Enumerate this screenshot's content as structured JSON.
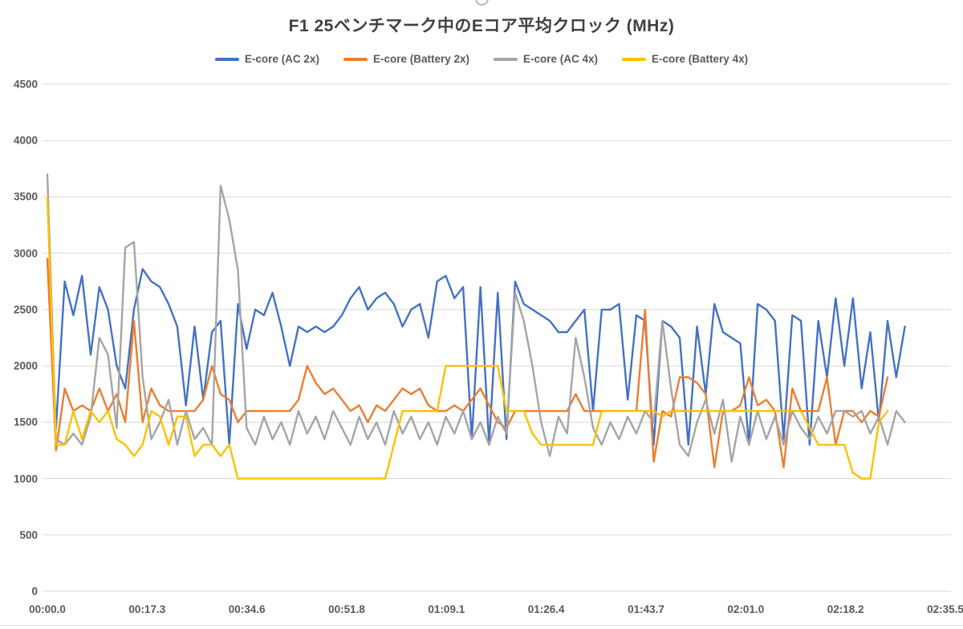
{
  "chart_data": {
    "type": "line",
    "title": "F1 25ベンチマーク中のEコア平均クロック (MHz)",
    "ylabel": "",
    "xlabel": "",
    "ylim": [
      0,
      4500
    ],
    "y_ticks": [
      0,
      500,
      1000,
      1500,
      2000,
      2500,
      3000,
      3500,
      4000,
      4500
    ],
    "x_range_seconds": [
      0,
      155.5
    ],
    "x_tick_labels": [
      "00:00.0",
      "00:17.3",
      "00:34.6",
      "00:51.8",
      "01:09.1",
      "01:26.4",
      "01:43.7",
      "02:01.0",
      "02:18.2",
      "02:35.5"
    ],
    "sample_interval_seconds": 1.5,
    "grid": "horizontal",
    "gridline_color": "#d9d9d9",
    "legend_position": "top",
    "text_color_title": "#404040",
    "text_color_axis": "#595959",
    "series": [
      {
        "name": "E-core (AC 2x)",
        "color": "#4472C4",
        "values": [
          2950,
          1450,
          2750,
          2450,
          2800,
          2100,
          2700,
          2500,
          2000,
          1800,
          2500,
          2860,
          2750,
          2700,
          2550,
          2350,
          1650,
          2350,
          1700,
          2300,
          2400,
          1300,
          2550,
          2150,
          2500,
          2450,
          2650,
          2350,
          2000,
          2350,
          2300,
          2350,
          2300,
          2350,
          2450,
          2600,
          2700,
          2500,
          2600,
          2650,
          2550,
          2350,
          2500,
          2550,
          2250,
          2750,
          2800,
          2600,
          2700,
          1350,
          2700,
          1300,
          2650,
          1350,
          2750,
          2550,
          2500,
          2450,
          2400,
          2300,
          2300,
          2400,
          2500,
          1600,
          2500,
          2500,
          2550,
          1700,
          2450,
          2400,
          1300,
          2400,
          2350,
          2250,
          1300,
          2350,
          1750,
          2550,
          2300,
          2250,
          2200,
          1300,
          2550,
          2500,
          2400,
          1350,
          2450,
          2400,
          1300,
          2400,
          1900,
          2600,
          2000,
          2600,
          1800,
          2300,
          1500,
          2400,
          1900,
          2350,
          null
        ]
      },
      {
        "name": "E-core (Battery 2x)",
        "color": "#ED7D31",
        "values": [
          2950,
          1250,
          1800,
          1600,
          1650,
          1600,
          1800,
          1600,
          1750,
          1500,
          2400,
          1500,
          1800,
          1650,
          1600,
          1600,
          1600,
          1600,
          1700,
          2000,
          1750,
          1700,
          1500,
          1600,
          1600,
          1600,
          1600,
          1600,
          1600,
          1700,
          2000,
          1850,
          1750,
          1800,
          1700,
          1600,
          1650,
          1500,
          1650,
          1600,
          1700,
          1800,
          1750,
          1800,
          1650,
          1600,
          1600,
          1650,
          1600,
          1700,
          1800,
          1650,
          1500,
          1450,
          1600,
          1600,
          1600,
          1600,
          1600,
          1600,
          1600,
          1750,
          1600,
          1600,
          1600,
          1600,
          1600,
          1600,
          1600,
          2500,
          1150,
          1600,
          1550,
          1900,
          1900,
          1850,
          1750,
          1100,
          1600,
          1600,
          1650,
          1900,
          1650,
          1700,
          1600,
          1100,
          1800,
          1600,
          1600,
          1600,
          1900,
          1300,
          1600,
          1600,
          1500,
          1600,
          1550,
          1900,
          null,
          null,
          null
        ]
      },
      {
        "name": "E-core (AC 4x)",
        "color": "#A5A5A5",
        "values": [
          3700,
          1350,
          1300,
          1400,
          1300,
          1550,
          2250,
          2100,
          1450,
          3050,
          3100,
          1900,
          1350,
          1500,
          1700,
          1300,
          1600,
          1350,
          1450,
          1300,
          3600,
          3300,
          2850,
          1450,
          1300,
          1550,
          1350,
          1500,
          1300,
          1600,
          1400,
          1550,
          1350,
          1600,
          1450,
          1300,
          1550,
          1350,
          1500,
          1300,
          1600,
          1400,
          1550,
          1350,
          1500,
          1300,
          1550,
          1400,
          1600,
          1350,
          1500,
          1300,
          1550,
          1400,
          2650,
          2400,
          2000,
          1500,
          1200,
          1550,
          1400,
          2250,
          1900,
          1450,
          1300,
          1500,
          1350,
          1550,
          1400,
          1600,
          1500,
          2400,
          1800,
          1300,
          1200,
          1500,
          1700,
          1400,
          1700,
          1150,
          1550,
          1300,
          1600,
          1350,
          1550,
          1300,
          1600,
          1450,
          1350,
          1550,
          1400,
          1600,
          1600,
          1550,
          1600,
          1400,
          1550,
          1300,
          1600,
          1500,
          null
        ]
      },
      {
        "name": "E-core (Battery 4x)",
        "color": "#FFC000",
        "values": [
          3500,
          1300,
          1300,
          1600,
          1350,
          1600,
          1500,
          1600,
          1350,
          1300,
          1200,
          1300,
          1600,
          1550,
          1300,
          1550,
          1550,
          1200,
          1300,
          1300,
          1200,
          1300,
          1000,
          1000,
          1000,
          1000,
          1000,
          1000,
          1000,
          1000,
          1000,
          1000,
          1000,
          1000,
          1000,
          1000,
          1000,
          1000,
          1000,
          1000,
          1300,
          1600,
          1600,
          1600,
          1600,
          1600,
          2000,
          2000,
          2000,
          2000,
          2000,
          2000,
          2000,
          1600,
          1600,
          1600,
          1400,
          1300,
          1300,
          1300,
          1300,
          1300,
          1300,
          1300,
          1600,
          1600,
          1600,
          1600,
          1600,
          1600,
          1600,
          1550,
          1600,
          1600,
          1600,
          1600,
          1600,
          1600,
          1600,
          1600,
          1600,
          1600,
          1600,
          1600,
          1600,
          1600,
          1600,
          1600,
          1450,
          1300,
          1300,
          1300,
          1300,
          1050,
          1000,
          1000,
          1500,
          1600,
          null,
          null,
          null
        ]
      }
    ]
  }
}
